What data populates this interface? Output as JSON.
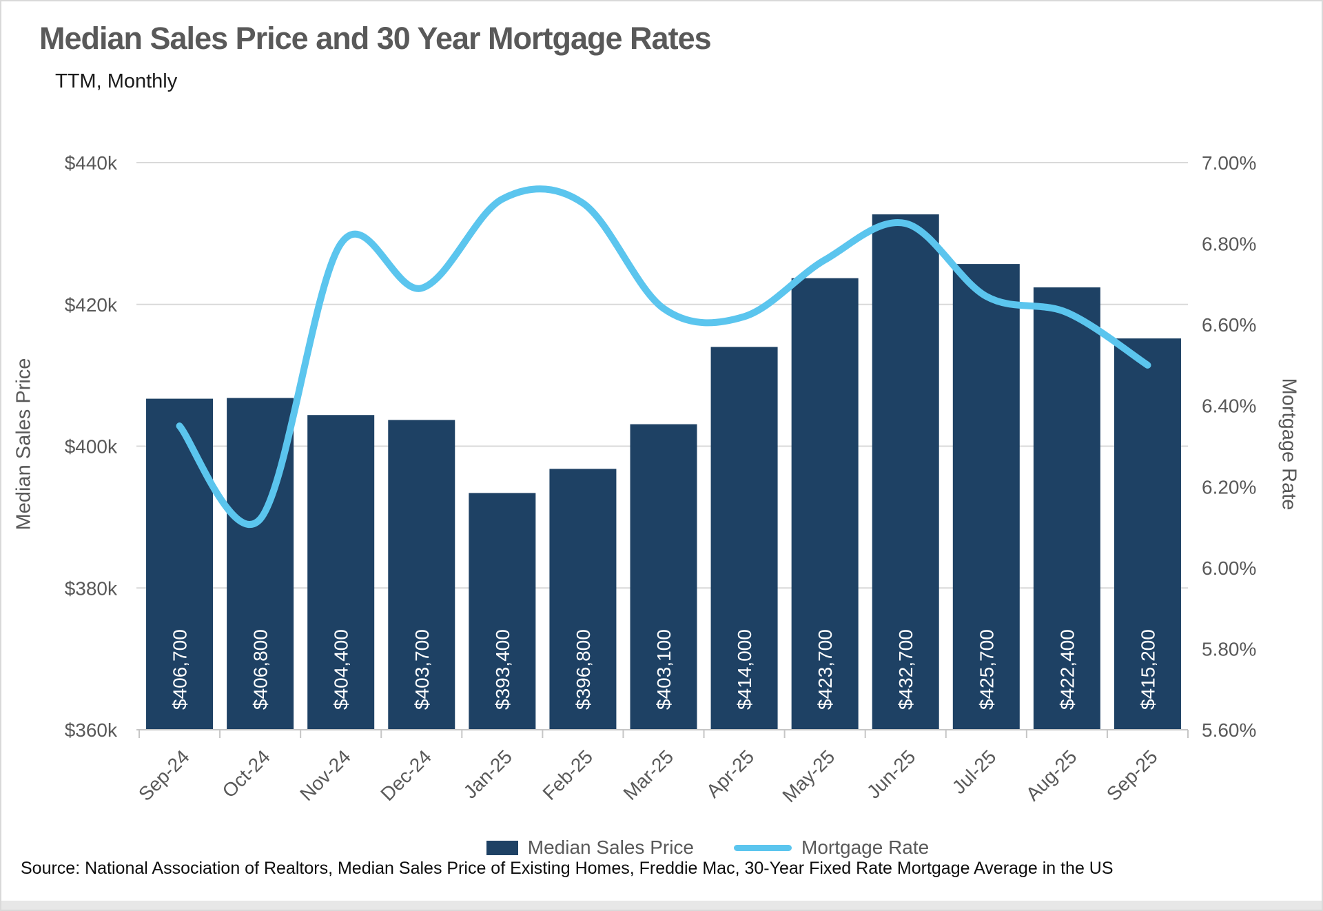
{
  "header": {
    "title": "Median Sales Price and 30 Year Mortgage Rates",
    "subtitle": "TTM, Monthly"
  },
  "legend": {
    "bar_label": "Median Sales Price",
    "line_label": "Mortgage Rate"
  },
  "source": "Source: National Association of Realtors, Median Sales Price of Existing Homes, Freddie Mac, 30-Year Fixed Rate Mortgage Average in the US",
  "colors": {
    "bar": "#1e4164",
    "line": "#5bc5ee",
    "gridline": "#d9d9d9",
    "axis_line": "#c6c6c6",
    "tick_text": "#595959",
    "bar_value_text": "#ffffff"
  },
  "chart_data": {
    "type": "bar+line combo",
    "categories": [
      "Sep-24",
      "Oct-24",
      "Nov-24",
      "Dec-24",
      "Jan-25",
      "Feb-25",
      "Mar-25",
      "Apr-25",
      "May-25",
      "Jun-25",
      "Jul-25",
      "Aug-25",
      "Sep-25"
    ],
    "series": [
      {
        "name": "Median Sales Price",
        "type": "bar",
        "axis": "left",
        "values": [
          406700,
          406800,
          404400,
          403700,
          393400,
          396800,
          403100,
          414000,
          423700,
          432700,
          425700,
          422400,
          415200
        ],
        "data_labels": [
          "$406,700",
          "$406,800",
          "$404,400",
          "$403,700",
          "$393,400",
          "$396,800",
          "$403,100",
          "$414,000",
          "$423,700",
          "$432,700",
          "$425,700",
          "$422,400",
          "$415,200"
        ]
      },
      {
        "name": "Mortgage Rate",
        "type": "line",
        "axis": "right",
        "values": [
          6.35,
          6.12,
          6.8,
          6.69,
          6.91,
          6.9,
          6.64,
          6.62,
          6.76,
          6.85,
          6.67,
          6.63,
          6.5
        ]
      }
    ],
    "left_axis": {
      "title": "Median Sales Price",
      "min": 360000,
      "max": 440000,
      "tick_labels": [
        "$440k",
        "$420k",
        "$400k",
        "$380k",
        "$360k"
      ]
    },
    "right_axis": {
      "title": "Mortgage Rate",
      "min": 5.6,
      "max": 7.0,
      "tick_labels": [
        "7.00%",
        "6.80%",
        "6.60%",
        "6.40%",
        "6.20%",
        "6.00%",
        "5.80%",
        "5.60%"
      ]
    },
    "grid": "horizontal gridlines at left-axis ticks",
    "legend_position": "bottom center",
    "line_smoothing": true
  }
}
